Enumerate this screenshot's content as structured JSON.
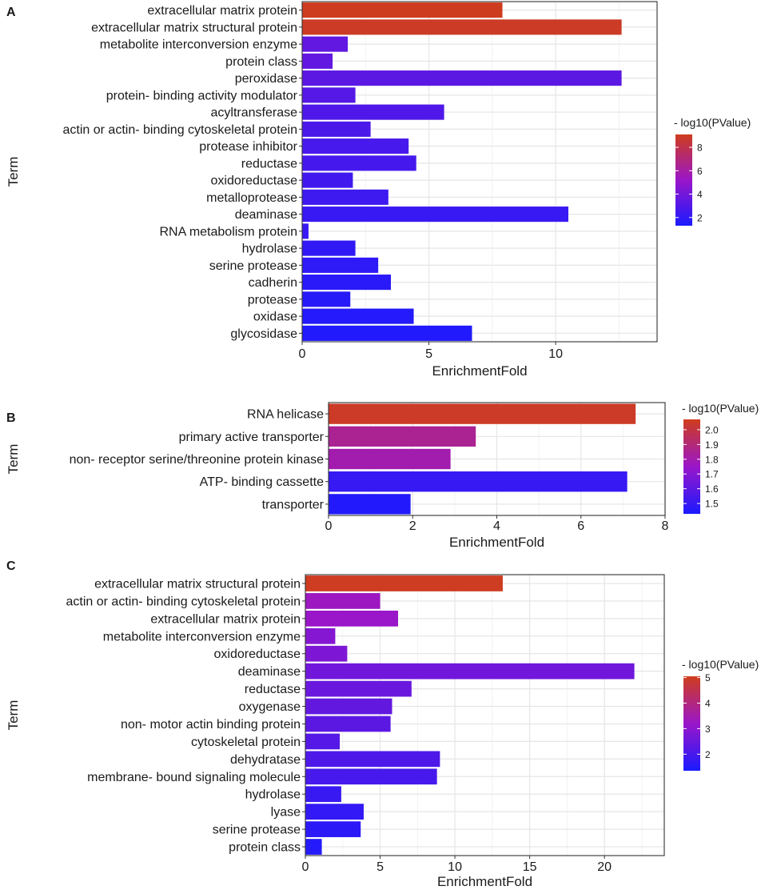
{
  "x_label": "EnrichmentFold",
  "y_label": "Term",
  "legend_title": "- log10(PValue)",
  "color_scale": {
    "low": "#1a1aff",
    "mid": "#9a16c9",
    "high": "#cf3d1c"
  },
  "chart_data": [
    {
      "type": "bar",
      "panel_label": "A",
      "orientation": "horizontal",
      "categories": [
        "extracellular matrix protein",
        "extracellular matrix structural protein",
        "metabolite interconversion enzyme",
        "protein class",
        "peroxidase",
        "protein- binding activity modulator",
        "acyltransferase",
        "actin or actin- binding cytoskeletal protein",
        "protease inhibitor",
        "reductase",
        "oxidoreductase",
        "metalloprotease",
        "deaminase",
        "RNA metabolism protein",
        "hydrolase",
        "serine protease",
        "cadherin",
        "protease",
        "oxidase",
        "glycosidase"
      ],
      "values": [
        7.9,
        12.6,
        1.8,
        1.2,
        12.6,
        2.1,
        5.6,
        2.7,
        4.2,
        4.5,
        2.0,
        3.4,
        10.5,
        0.25,
        2.1,
        3.0,
        3.5,
        1.9,
        4.4,
        6.7
      ],
      "neg_log10_pvalue": [
        9.0,
        8.9,
        3.5,
        3.5,
        3.3,
        3.1,
        2.9,
        2.8,
        2.7,
        2.6,
        2.5,
        2.4,
        2.2,
        2.2,
        2.0,
        1.9,
        1.8,
        1.7,
        1.6,
        1.5
      ],
      "xlim": [
        0,
        14
      ],
      "xticks": [
        0,
        5,
        10
      ],
      "legend_range": [
        1.3,
        9.1
      ],
      "legend_ticks": [
        2,
        4,
        6,
        8
      ]
    },
    {
      "type": "bar",
      "panel_label": "B",
      "orientation": "horizontal",
      "categories": [
        "RNA helicase",
        "primary active transporter",
        "non- receptor serine/threonine protein kinase",
        "ATP- binding cassette",
        "transporter"
      ],
      "values": [
        7.3,
        3.5,
        2.9,
        7.1,
        1.95
      ],
      "neg_log10_pvalue": [
        2.05,
        1.85,
        1.8,
        1.5,
        1.45
      ],
      "xlim": [
        0,
        8
      ],
      "xticks": [
        0,
        2,
        4,
        6,
        8
      ],
      "legend_range": [
        1.43,
        2.07
      ],
      "legend_ticks": [
        1.5,
        1.6,
        1.7,
        1.8,
        1.9,
        2.0
      ],
      "legend_tick_labels": [
        "1.5",
        "1.6",
        "1.7",
        "1.8",
        "1.9",
        "2.0"
      ]
    },
    {
      "type": "bar",
      "panel_label": "C",
      "orientation": "horizontal",
      "categories": [
        "extracellular matrix structural protein",
        "actin or actin- binding cytoskeletal protein",
        "extracellular matrix protein",
        "metabolite interconversion enzyme",
        "oxidoreductase",
        "deaminase",
        "reductase",
        "oxygenase",
        "non- motor actin binding protein",
        "cytoskeletal protein",
        "dehydratase",
        "membrane- bound signaling molecule",
        "hydrolase",
        "lyase",
        "serine protease",
        "protein class"
      ],
      "values": [
        13.2,
        5.0,
        6.2,
        2.0,
        2.8,
        22.0,
        7.1,
        5.8,
        5.7,
        2.3,
        9.0,
        8.8,
        2.4,
        3.9,
        3.7,
        1.1
      ],
      "neg_log10_pvalue": [
        5.0,
        3.3,
        3.2,
        2.9,
        2.8,
        2.6,
        2.5,
        2.4,
        2.3,
        2.2,
        2.1,
        2.0,
        1.8,
        1.7,
        1.6,
        1.5
      ],
      "xlim": [
        0,
        24
      ],
      "xticks": [
        0,
        5,
        10,
        15,
        20
      ],
      "legend_range": [
        1.35,
        5.05
      ],
      "legend_ticks": [
        2,
        3,
        4,
        5
      ]
    }
  ]
}
